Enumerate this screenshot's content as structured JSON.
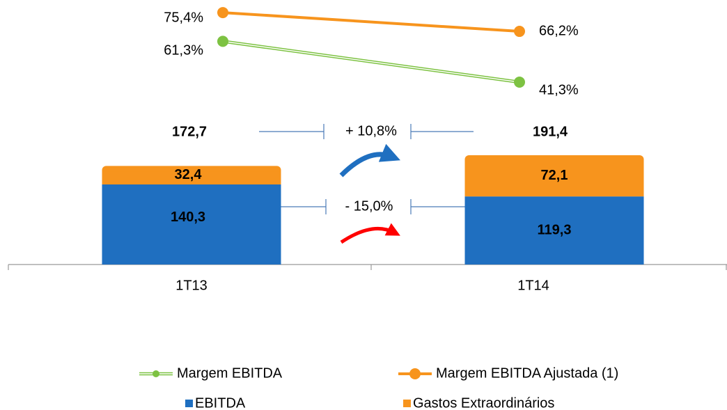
{
  "chart_data": {
    "type": "bar",
    "categories": [
      "1T13",
      "1T14"
    ],
    "series": [
      {
        "name": "EBITDA",
        "color": "#1f6fc0",
        "values": [
          140.3,
          119.3
        ],
        "value_labels": [
          "140,3",
          "119,3"
        ]
      },
      {
        "name": "Gastos Extraordinários",
        "color": "#f7941d",
        "values": [
          32.4,
          72.1
        ],
        "value_labels": [
          "32,4",
          "72,1"
        ]
      }
    ],
    "totals": {
      "values": [
        172.7,
        191.4
      ],
      "value_labels": [
        "172,7",
        "191,4"
      ]
    },
    "lines": [
      {
        "name": "Margem EBITDA",
        "color": "#7dc242",
        "values": [
          61.3,
          41.3
        ],
        "value_labels": [
          "61,3%",
          "41,3%"
        ]
      },
      {
        "name": "Margem EBITDA Ajustada (1)",
        "color": "#f7941d",
        "values": [
          75.4,
          66.2
        ],
        "value_labels": [
          "75,4%",
          "66,2%"
        ]
      }
    ],
    "annotations": [
      "+ 10,8%",
      "- 15,0%"
    ]
  }
}
